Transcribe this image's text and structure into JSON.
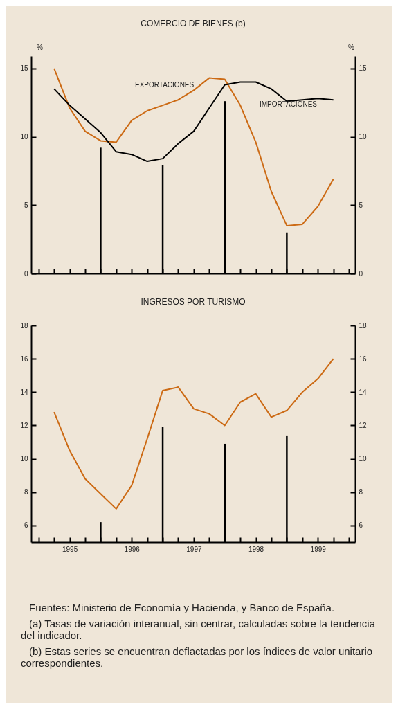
{
  "chart_data": [
    {
      "type": "line",
      "title": "COMERCIO DE BIENES (b)",
      "ylabel": "%",
      "y2label": "%",
      "xlim": [
        1994.88,
        2000.1
      ],
      "xticks": [
        {
          "value": 1995,
          "label": null
        },
        {
          "value": 1995.25,
          "label": null
        },
        {
          "value": 1995.5,
          "label": null
        },
        {
          "value": 1995.75,
          "label": null
        },
        {
          "value": 1996,
          "label": null
        },
        {
          "value": 1996.25,
          "label": null
        },
        {
          "value": 1996.5,
          "label": null
        },
        {
          "value": 1996.75,
          "label": null
        },
        {
          "value": 1997,
          "label": null
        },
        {
          "value": 1997.25,
          "label": null
        },
        {
          "value": 1997.5,
          "label": null
        },
        {
          "value": 1997.75,
          "label": null
        },
        {
          "value": 1998,
          "label": null
        },
        {
          "value": 1998.25,
          "label": null
        },
        {
          "value": 1998.5,
          "label": null
        },
        {
          "value": 1998.75,
          "label": null
        },
        {
          "value": 1999,
          "label": null
        },
        {
          "value": 1999.25,
          "label": null
        },
        {
          "value": 1999.5,
          "label": null
        },
        {
          "value": 1999.75,
          "label": null
        },
        {
          "value": 2000,
          "label": null
        }
      ],
      "ylim": [
        0,
        15.9
      ],
      "yticks": [
        0,
        5,
        10,
        15
      ],
      "y2lim": [
        0,
        15.9
      ],
      "y2ticks": [
        0,
        5,
        10,
        15
      ],
      "tick_labels": "y",
      "grid": false,
      "legend": false,
      "series": [
        {
          "name": "EXPORTACIONES",
          "color": "#cc6a14",
          "x": [
            1995.25,
            1995.5,
            1995.75,
            1996,
            1996.25,
            1996.5,
            1996.75,
            1997,
            1997.25,
            1997.5,
            1997.75,
            1998,
            1998.25,
            1998.5,
            1998.75,
            1999,
            1999.25,
            1999.5,
            1999.75
          ],
          "values": [
            15.0,
            12.1,
            10.4,
            9.7,
            9.6,
            11.2,
            11.9,
            12.3,
            12.7,
            13.4,
            14.3,
            14.2,
            12.3,
            9.6,
            6.0,
            3.5,
            3.6,
            4.9,
            6.9
          ]
        },
        {
          "name": "IMPORTACIONES",
          "color": "#000000",
          "x": [
            1995.25,
            1995.5,
            1995.75,
            1996,
            1996.25,
            1996.5,
            1996.75,
            1997,
            1997.25,
            1997.5,
            1997.75,
            1998,
            1998.25,
            1998.5,
            1998.75,
            1999,
            1999.25,
            1999.5,
            1999.75
          ],
          "values": [
            13.5,
            12.3,
            11.3,
            10.3,
            8.9,
            8.7,
            8.2,
            8.4,
            9.5,
            10.4,
            12.1,
            13.8,
            14.0,
            14.0,
            13.5,
            12.6,
            12.7,
            12.8,
            12.7
          ]
        },
        {
          "type": "bar",
          "color": "#000000",
          "x": [
            1996,
            1997,
            1998,
            1999
          ],
          "values": [
            9.2,
            7.9,
            12.6,
            3.0
          ]
        }
      ]
    },
    {
      "type": "line",
      "title": "INGRESOS POR TURISMO",
      "xlim": [
        1994.88,
        2000.1
      ],
      "xticks": [
        {
          "value": 1995,
          "label": null
        },
        {
          "value": 1995.25,
          "label": null
        },
        {
          "value": 1995.5,
          "label": "1995"
        },
        {
          "value": 1995.75,
          "label": null
        },
        {
          "value": 1996,
          "label": null
        },
        {
          "value": 1996.25,
          "label": null
        },
        {
          "value": 1996.5,
          "label": "1996"
        },
        {
          "value": 1996.75,
          "label": null
        },
        {
          "value": 1997,
          "label": null
        },
        {
          "value": 1997.25,
          "label": null
        },
        {
          "value": 1997.5,
          "label": "1997"
        },
        {
          "value": 1997.75,
          "label": null
        },
        {
          "value": 1998,
          "label": null
        },
        {
          "value": 1998.25,
          "label": null
        },
        {
          "value": 1998.5,
          "label": "1998"
        },
        {
          "value": 1998.75,
          "label": null
        },
        {
          "value": 1999,
          "label": null
        },
        {
          "value": 1999.25,
          "label": null
        },
        {
          "value": 1999.5,
          "label": "1999"
        },
        {
          "value": 1999.75,
          "label": null
        },
        {
          "value": 2000,
          "label": null
        }
      ],
      "ylim": [
        5,
        18
      ],
      "yticks": [
        6,
        8,
        10,
        12,
        14,
        16,
        18
      ],
      "y2lim": [
        5,
        18
      ],
      "y2ticks": [
        6,
        8,
        10,
        12,
        14,
        16,
        18
      ],
      "grid": false,
      "legend": false,
      "series": [
        {
          "color": "#cc6a14",
          "x": [
            1995.25,
            1995.5,
            1995.75,
            1996,
            1996.25,
            1996.5,
            1996.75,
            1997,
            1997.25,
            1997.5,
            1997.75,
            1998,
            1998.25,
            1998.5,
            1998.75,
            1999,
            1999.25,
            1999.5,
            1999.75
          ],
          "values": [
            12.8,
            10.5,
            8.8,
            7.9,
            7.0,
            8.4,
            11.2,
            14.1,
            14.3,
            13.0,
            12.7,
            12.0,
            13.4,
            13.9,
            12.5,
            12.9,
            14.0,
            14.8,
            16.0
          ]
        },
        {
          "type": "bar",
          "color": "#000000",
          "x": [
            1996,
            1997,
            1998,
            1999
          ],
          "values": [
            6.2,
            11.9,
            10.9,
            11.4
          ]
        }
      ],
      "annotations": [
        "Fuentes: Ministerio de Economía y Hacienda, y Banco de España.",
        "(a) Tasas de variación interanual, sin centrar, calculadas sobre la tendencia del indicador.",
        "(b) Estas series se encuentran deflactadas por los índices de valor unitario correspondientes."
      ]
    }
  ]
}
